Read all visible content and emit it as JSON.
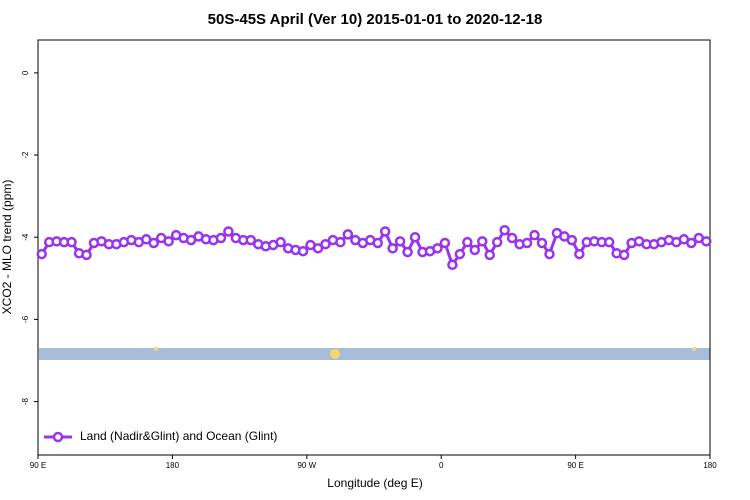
{
  "chart_data": {
    "type": "line",
    "title": "50S-45S April (Ver 10)   2015-01-01 to 2020-12-18",
    "x_label": "Longitude (deg E)",
    "y_label": "XCO2 - MLO trend (ppm)",
    "xlim": [
      90,
      540
    ],
    "xticks": [
      {
        "value": 90,
        "label": "90 E"
      },
      {
        "value": 180,
        "label": "180"
      },
      {
        "value": 270,
        "label": "90 W"
      },
      {
        "value": 360,
        "label": "0"
      },
      {
        "value": 450,
        "label": "90 E"
      },
      {
        "value": 540,
        "label": "180"
      }
    ],
    "ylim": [
      -9.3,
      0.8
    ],
    "yticks": [
      0,
      -2,
      -4,
      -6,
      -8
    ],
    "legend": "bottom-left",
    "x": [
      92.5,
      97.5,
      102.5,
      107.5,
      112.5,
      117.5,
      122.5,
      127.5,
      132.5,
      137.5,
      142.5,
      147.5,
      152.5,
      157.5,
      162.5,
      167.5,
      172.5,
      177.5,
      182.5,
      187.5,
      192.5,
      197.5,
      202.5,
      207.5,
      212.5,
      217.5,
      222.5,
      227.5,
      232.5,
      237.5,
      242.5,
      247.5,
      252.5,
      257.5,
      262.5,
      267.5,
      272.5,
      277.5,
      282.5,
      287.5,
      292.5,
      297.5,
      302.5,
      307.5,
      312.5,
      317.5,
      322.5,
      327.5,
      332.5,
      337.5,
      342.5,
      347.5,
      352.5,
      357.5,
      362.5,
      367.5,
      372.5,
      377.5,
      382.5,
      387.5,
      392.5,
      397.5,
      402.5,
      407.5,
      412.5,
      417.5,
      422.5,
      427.5,
      432.5,
      437.5,
      442.5,
      447.5,
      452.5,
      457.5,
      462.5,
      467.5,
      472.5,
      477.5,
      482.5,
      487.5,
      492.5,
      497.5,
      502.5,
      507.5,
      512.5,
      517.5,
      522.5,
      527.5,
      532.5,
      537.5
    ],
    "series": [
      {
        "name": "Land (Nadir&Glint) and Ocean (Glint)",
        "color": "#9933ee",
        "values": [
          -4.41,
          -4.12,
          -4.1,
          -4.12,
          -4.12,
          -4.39,
          -4.43,
          -4.14,
          -4.1,
          -4.17,
          -4.17,
          -4.12,
          -4.07,
          -4.12,
          -4.05,
          -4.14,
          -4.02,
          -4.1,
          -3.95,
          -4.02,
          -4.07,
          -3.98,
          -4.05,
          -4.07,
          -4.02,
          -3.86,
          -4.02,
          -4.07,
          -4.07,
          -4.17,
          -4.22,
          -4.19,
          -4.12,
          -4.27,
          -4.31,
          -4.34,
          -4.19,
          -4.27,
          -4.17,
          -4.07,
          -4.12,
          -3.93,
          -4.07,
          -4.14,
          -4.07,
          -4.14,
          -3.86,
          -4.27,
          -4.1,
          -4.36,
          -4.0,
          -4.36,
          -4.34,
          -4.27,
          -4.14,
          -4.67,
          -4.41,
          -4.12,
          -4.31,
          -4.1,
          -4.43,
          -4.12,
          -3.83,
          -4.02,
          -4.17,
          -4.14,
          -3.95,
          -4.14,
          -4.41,
          -3.9,
          -3.98,
          -4.07,
          -4.41,
          -4.12,
          -4.1,
          -4.12,
          -4.12,
          -4.39,
          -4.43,
          -4.14,
          -4.1,
          -4.17,
          -4.17,
          -4.12,
          -4.07,
          -4.12,
          -4.05,
          -4.14,
          -4.02,
          -4.1
        ]
      }
    ]
  }
}
